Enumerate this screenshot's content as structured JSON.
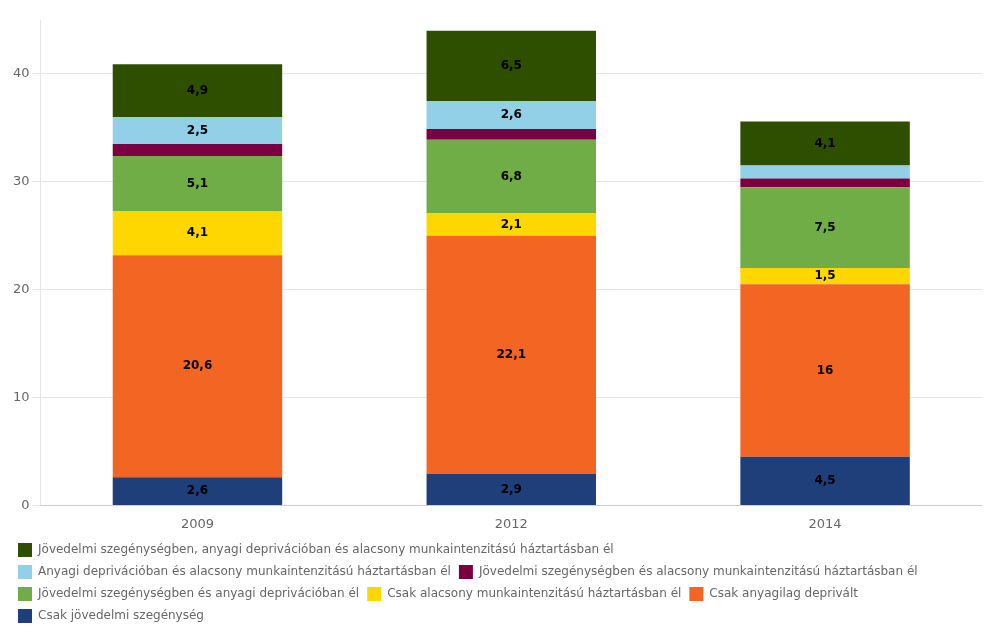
{
  "chart_data": {
    "type": "bar",
    "stacked": true,
    "categories": [
      "2009",
      "2012",
      "2014"
    ],
    "series": [
      {
        "name": "Csak jövedelmi szegénység",
        "color": "#1f3f7a",
        "values": [
          2.6,
          2.9,
          4.5
        ],
        "value_labels": [
          "2,6",
          "2,9",
          "4,5"
        ]
      },
      {
        "name": "Csak anyagilag deprivált",
        "color": "#f26522",
        "values": [
          20.6,
          22.1,
          16.0
        ],
        "value_labels": [
          "20,6",
          "22,1",
          "16"
        ]
      },
      {
        "name": "Csak alacsony munkaintenzitású háztartásban él",
        "color": "#ffd700",
        "values": [
          4.1,
          2.1,
          1.5
        ],
        "value_labels": [
          "4,1",
          "2,1",
          "1,5"
        ]
      },
      {
        "name": "Jövedelmi szegénységben és anyagi deprivációban él",
        "color": "#70ad47",
        "values": [
          5.1,
          6.8,
          7.5
        ],
        "value_labels": [
          "5,1",
          "6,8",
          "7,5"
        ]
      },
      {
        "name": "Jövedelmi szegénységben és alacsony munkaintenzitású háztartásban él",
        "color": "#7b0041",
        "values": [
          1.1,
          1.0,
          0.8
        ],
        "value_labels": [
          null,
          null,
          null
        ]
      },
      {
        "name": "Anyagi deprivációban és alacsony munkaintenzitású háztartásban él",
        "color": "#92d0e8",
        "values": [
          2.5,
          2.6,
          1.2
        ],
        "value_labels": [
          "2,5",
          "2,6",
          null
        ]
      },
      {
        "name": "Jövedelmi szegénységben, anyagi deprivációban és alacsony munkaintenzitású háztartásban él",
        "color": "#2f4f00",
        "values": [
          4.9,
          6.5,
          4.1
        ],
        "value_labels": [
          "4,9",
          "6,5",
          "4,1"
        ]
      }
    ],
    "ylim": [
      0,
      45
    ],
    "yticks": [
      0,
      10,
      20,
      30,
      40
    ],
    "grid": true,
    "data_labels": true,
    "legend": "bottom"
  }
}
